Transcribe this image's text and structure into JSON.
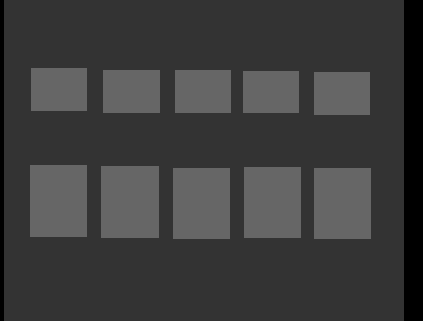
{
  "colors": {
    "page_background": "#000000",
    "panel_background": "#333333",
    "tile_fill": "#666666"
  },
  "grid": {
    "rows": [
      {
        "tiles": [
          {},
          {},
          {},
          {},
          {}
        ]
      },
      {
        "tiles": [
          {},
          {},
          {},
          {},
          {}
        ]
      }
    ]
  }
}
